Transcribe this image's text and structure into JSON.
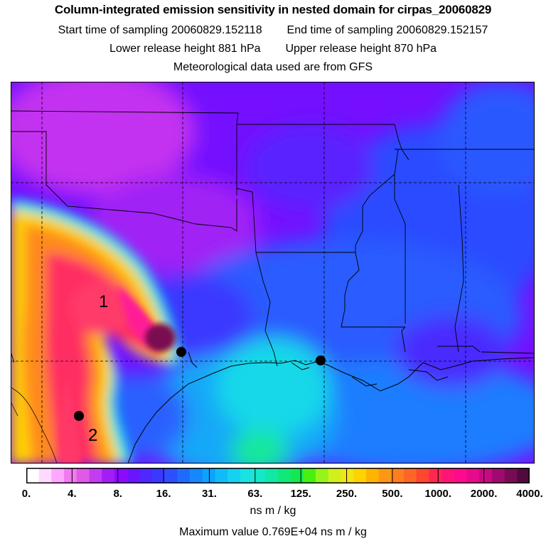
{
  "header": {
    "title": "Column-integrated emission sensitivity in nested domain for cirpas_20060829",
    "start_label": "Start time of sampling",
    "start_value": "20060829.152118",
    "end_label": "End time of sampling",
    "end_value": "20060829.152157",
    "lower_label": "Lower release height",
    "lower_value": "881 hPa",
    "upper_label": "Upper release height",
    "upper_value": "870 hPa",
    "met_note": "Meteorological data used are from GFS"
  },
  "map": {
    "markers": [
      {
        "label": "1",
        "kind": "text-label"
      },
      {
        "label": "2",
        "kind": "text-label"
      },
      {
        "label": "",
        "kind": "release-site"
      },
      {
        "label": "",
        "kind": "release-site"
      },
      {
        "label": "",
        "kind": "dot"
      }
    ],
    "palette": {
      "background_low": "#7000ff",
      "mid_blue": "#1a7dff",
      "cyan": "#16e6e6",
      "yellow": "#ffcc00",
      "orange": "#ff8a1a",
      "red": "#ff3060",
      "magenta": "#ff1a96",
      "dark_max": "#5a0a3c"
    }
  },
  "colorbar": {
    "ticks": [
      "0.",
      "4.",
      "8.",
      "16.",
      "31.",
      "63.",
      "125.",
      "250.",
      "500.",
      "1000.",
      "2000.",
      "4000."
    ],
    "colors": [
      "#ffffff",
      "#ffd9ff",
      "#ffa6ff",
      "#f07af0",
      "#e05ae6",
      "#c33cf0",
      "#a21ef5",
      "#8c0aff",
      "#6c14ff",
      "#4f28ff",
      "#3a3aff",
      "#2c50ff",
      "#1e6cff",
      "#1588ff",
      "#0ea2ff",
      "#10bcf8",
      "#14d2f0",
      "#18e2e2",
      "#14e8c8",
      "#10e8a4",
      "#10e87a",
      "#14e850",
      "#48f010",
      "#96f41a",
      "#d0f01e",
      "#f0e614",
      "#ffd200",
      "#ffb400",
      "#ff9614",
      "#ff7d1e",
      "#ff6428",
      "#ff4630",
      "#ff2850",
      "#ff1478",
      "#ff0a8c",
      "#e60a8c",
      "#c80a82",
      "#a00a70",
      "#780a56",
      "#500a3c"
    ],
    "units": "ns m / kg",
    "max_label": "Maximum value",
    "max_value": "0.769E+04 ns m / kg"
  }
}
